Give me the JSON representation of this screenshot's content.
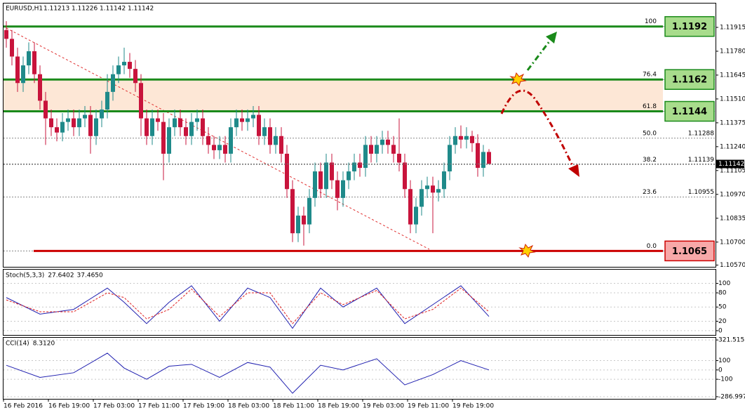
{
  "chart_data": {
    "type": "candlestick",
    "title": "EURUSD,H1",
    "header_values": [
      1.11213,
      1.11226,
      1.11142,
      1.11142
    ],
    "up_color": "#1f8a8a",
    "down_color": "#c8143c",
    "open": [
      1.119,
      1.1185,
      1.1175,
      1.116,
      1.117,
      1.1178,
      1.1165,
      1.115,
      1.114,
      1.1135,
      1.1132,
      1.1138,
      1.114,
      1.1135,
      1.114,
      1.1142,
      1.113,
      1.114,
      1.1145,
      1.1155,
      1.1165,
      1.117,
      1.1172,
      1.1168,
      1.116,
      1.114,
      1.113,
      1.114,
      1.1138,
      1.112,
      1.1135,
      1.114,
      1.1135,
      1.113,
      1.1138,
      1.114,
      1.113,
      1.1125,
      1.1122,
      1.1125,
      1.112,
      1.1135,
      1.114,
      1.1138,
      1.114,
      1.1142,
      1.113,
      1.1135,
      1.1125,
      1.113,
      1.112,
      1.11,
      1.1075,
      1.1085,
      1.108,
      1.1095,
      1.111,
      1.11,
      1.1115,
      1.1105,
      1.1095,
      1.1105,
      1.111,
      1.1115,
      1.1112,
      1.1125,
      1.112,
      1.1125,
      1.1128,
      1.1125,
      1.112,
      1.1115,
      1.11,
      1.108,
      1.109,
      1.11,
      1.1102,
      1.1098,
      1.11,
      1.111,
      1.1125,
      1.113,
      1.1128,
      1.113,
      1.1126,
      1.1112,
      1.1121
    ],
    "high": [
      1.1195,
      1.119,
      1.118,
      1.1175,
      1.1183,
      1.1183,
      1.117,
      1.1155,
      1.1145,
      1.114,
      1.1143,
      1.1145,
      1.1145,
      1.1145,
      1.1147,
      1.1147,
      1.1145,
      1.115,
      1.1165,
      1.117,
      1.1175,
      1.118,
      1.1177,
      1.1173,
      1.1165,
      1.1145,
      1.1145,
      1.1145,
      1.1143,
      1.114,
      1.1145,
      1.1145,
      1.114,
      1.1143,
      1.1145,
      1.1145,
      1.1135,
      1.113,
      1.113,
      1.113,
      1.114,
      1.1145,
      1.1145,
      1.1145,
      1.1147,
      1.1147,
      1.114,
      1.114,
      1.1135,
      1.1135,
      1.1125,
      1.1105,
      1.109,
      1.109,
      1.11,
      1.1115,
      1.1115,
      1.112,
      1.112,
      1.111,
      1.111,
      1.1115,
      1.112,
      1.112,
      1.113,
      1.113,
      1.113,
      1.1133,
      1.1133,
      1.113,
      1.114,
      1.112,
      1.1105,
      1.1095,
      1.1105,
      1.1107,
      1.1107,
      1.1105,
      1.1115,
      1.113,
      1.1135,
      1.1136,
      1.1135,
      1.1133,
      1.1131,
      1.1125,
      1.11226
    ],
    "low": [
      1.118,
      1.117,
      1.1155,
      1.1155,
      1.1165,
      1.116,
      1.1145,
      1.1125,
      1.113,
      1.1127,
      1.1127,
      1.1133,
      1.113,
      1.113,
      1.1135,
      1.112,
      1.1125,
      1.1135,
      1.114,
      1.115,
      1.116,
      1.1165,
      1.1163,
      1.1155,
      1.113,
      1.1125,
      1.1125,
      1.1133,
      1.1105,
      1.1115,
      1.113,
      1.113,
      1.1125,
      1.1125,
      1.1133,
      1.1125,
      1.112,
      1.1117,
      1.1117,
      1.1115,
      1.1115,
      1.113,
      1.1133,
      1.1133,
      1.1135,
      1.1125,
      1.1125,
      1.112,
      1.112,
      1.1115,
      1.1095,
      1.107,
      1.107,
      1.1068,
      1.1075,
      1.109,
      1.1095,
      1.1095,
      1.11,
      1.1088,
      1.109,
      1.11,
      1.1105,
      1.1107,
      1.1107,
      1.1115,
      1.1115,
      1.112,
      1.112,
      1.1115,
      1.111,
      1.1095,
      1.1075,
      1.1075,
      1.1085,
      1.1095,
      1.1075,
      1.1093,
      1.1095,
      1.1105,
      1.112,
      1.1123,
      1.1123,
      1.1121,
      1.1107,
      1.1107,
      1.11142
    ],
    "close": [
      1.1185,
      1.1175,
      1.116,
      1.117,
      1.1178,
      1.1165,
      1.115,
      1.114,
      1.1135,
      1.1132,
      1.1138,
      1.114,
      1.1135,
      1.114,
      1.1142,
      1.113,
      1.114,
      1.1145,
      1.1155,
      1.1165,
      1.117,
      1.1172,
      1.1168,
      1.116,
      1.114,
      1.113,
      1.114,
      1.1138,
      1.112,
      1.1135,
      1.114,
      1.1135,
      1.113,
      1.1138,
      1.114,
      1.113,
      1.1125,
      1.1122,
      1.1125,
      1.112,
      1.1135,
      1.114,
      1.1138,
      1.114,
      1.1142,
      1.113,
      1.1135,
      1.1125,
      1.113,
      1.112,
      1.11,
      1.1075,
      1.1085,
      1.108,
      1.1095,
      1.111,
      1.11,
      1.1115,
      1.1105,
      1.1095,
      1.1105,
      1.111,
      1.1115,
      1.1112,
      1.1125,
      1.112,
      1.1125,
      1.1128,
      1.1125,
      1.112,
      1.1115,
      1.11,
      1.108,
      1.109,
      1.11,
      1.1102,
      1.1098,
      1.11,
      1.111,
      1.1125,
      1.113,
      1.1128,
      1.113,
      1.1126,
      1.1112,
      1.1121,
      1.11142
    ],
    "ylim": [
      1.1056,
      1.1205
    ],
    "yticks": [
      {
        "value": 1.1057,
        "label": "1.10570"
      },
      {
        "value": 1.107,
        "label": "1.10700"
      },
      {
        "value": 1.10835,
        "label": "1.10835"
      },
      {
        "value": 1.1097,
        "label": "1.10970"
      },
      {
        "value": 1.11105,
        "label": "1.11105"
      },
      {
        "value": 1.1124,
        "label": "1.11240"
      },
      {
        "value": 1.11375,
        "label": "1.11375"
      },
      {
        "value": 1.1151,
        "label": "1.11510"
      },
      {
        "value": 1.11645,
        "label": "1.11645"
      },
      {
        "value": 1.1178,
        "label": "1.11780"
      },
      {
        "value": 1.11915,
        "label": "1.11915"
      }
    ],
    "xticks": [
      {
        "value": 0,
        "label": "16 Feb 2016"
      },
      {
        "value": 8,
        "label": "16 Feb 19:00"
      },
      {
        "value": 16,
        "label": "17 Feb 03:00"
      },
      {
        "value": 24,
        "label": "17 Feb 11:00"
      },
      {
        "value": 32,
        "label": "17 Feb 19:00"
      },
      {
        "value": 40,
        "label": "18 Feb 03:00"
      },
      {
        "value": 48,
        "label": "18 Feb 11:00"
      },
      {
        "value": 56,
        "label": "18 Feb 19:00"
      },
      {
        "value": 64,
        "label": "19 Feb 03:00"
      },
      {
        "value": 72,
        "label": "19 Feb 11:00"
      },
      {
        "value": 80,
        "label": "19 Feb 19:00"
      }
    ],
    "last_price": 1.11142,
    "levels": [
      {
        "value": 1.1192,
        "label": "100",
        "style": "box",
        "color": "#1a8a1a"
      },
      {
        "value": 1.1162,
        "label": "76.4",
        "style": "box",
        "color": "#1a8a1a",
        "zone_to_next": true
      },
      {
        "value": 1.1144,
        "label": "61.8",
        "style": "box",
        "color": "#1a8a1a"
      },
      {
        "value": 1.11288,
        "label": "50.0",
        "style": "dashed"
      },
      {
        "value": 1.11139,
        "label": "38.2",
        "style": "dashed"
      },
      {
        "value": 1.10955,
        "label": "23.6",
        "style": "dashed"
      },
      {
        "value": 1.1065,
        "label": "0.0",
        "style": "red-box",
        "color": "#cc0000"
      }
    ],
    "indicators": [
      {
        "name": "Stoch(5,3,3)",
        "readings": [
          27.6402,
          {
            "value": 37.465,
            "label": "37.4650"
          }
        ],
        "ylim": [
          -9,
          129
        ],
        "yticks": [
          0,
          20,
          50,
          80,
          100
        ],
        "x": [
          0,
          6,
          12,
          18,
          21,
          25,
          29,
          33,
          38,
          43,
          47,
          51,
          56,
          60,
          66,
          71,
          76,
          81,
          86
        ],
        "series": [
          {
            "color": "#2020b0",
            "dashed": false,
            "values": [
              70,
              35,
              45,
              90,
              60,
              15,
              60,
              95,
              20,
              90,
              70,
              5,
              90,
              50,
              90,
              15,
              55,
              95,
              30
            ]
          },
          {
            "color": "#e02020",
            "dashed": true,
            "values": [
              65,
              40,
              40,
              80,
              70,
              25,
              45,
              88,
              30,
              80,
              80,
              15,
              80,
              55,
              85,
              25,
              45,
              90,
              40
            ]
          }
        ]
      },
      {
        "name": "CCI(14)",
        "readings": [
          {
            "value": 8.312,
            "label": "8.3120"
          }
        ],
        "ylim": [
          -310,
          345
        ],
        "yticks": [
          -286.9977,
          -100,
          0,
          100,
          321.5158
        ],
        "x": [
          0,
          6,
          12,
          18,
          21,
          25,
          29,
          33,
          38,
          43,
          47,
          51,
          56,
          60,
          66,
          71,
          76,
          81,
          86
        ],
        "series": [
          {
            "color": "#2020b0",
            "dashed": false,
            "values": [
              50,
              -80,
              -30,
              180,
              20,
              -100,
              40,
              60,
              -80,
              80,
              30,
              -250,
              50,
              0,
              120,
              -160,
              -50,
              100,
              0
            ]
          }
        ]
      }
    ]
  }
}
